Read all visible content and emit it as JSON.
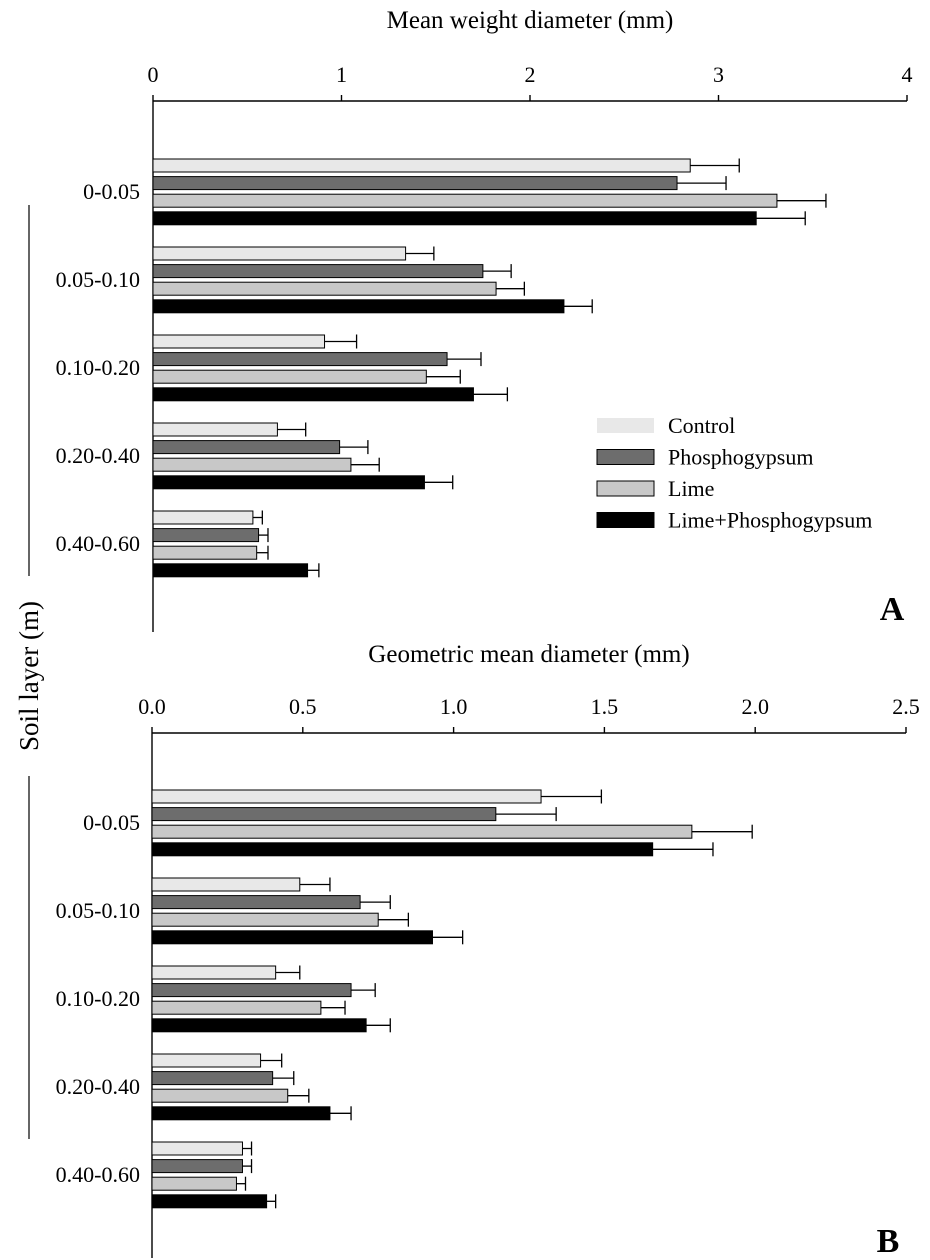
{
  "figure": {
    "ylabel": "Soil layer (m)",
    "legend": {
      "placement": "inside-right-panel-A",
      "entries": [
        {
          "name": "Control",
          "color": "#e8e8e8"
        },
        {
          "name": "Phosphogypsum",
          "color": "#6d6d6d"
        },
        {
          "name": "Lime",
          "color": "#c8c8c8"
        },
        {
          "name": "Lime+Phosphogypsum",
          "color": "#000000"
        }
      ]
    }
  },
  "chart_data": [
    {
      "type": "bar",
      "orientation": "horizontal",
      "panel": "A",
      "title": "Mean weight diameter (mm)",
      "xaxis_position": "top",
      "xlim": [
        0,
        4
      ],
      "xticks": [
        "0",
        "1",
        "2",
        "3",
        "4"
      ],
      "grid": false,
      "categories": [
        "0-0.05",
        "0.05-0.10",
        "0.10-0.20",
        "0.20-0.40",
        "0.40-0.60"
      ],
      "series": [
        {
          "name": "Control",
          "color": "#e8e8e8",
          "values": [
            2.85,
            1.34,
            0.91,
            0.66,
            0.53
          ],
          "errors": [
            0.26,
            0.15,
            0.17,
            0.15,
            0.05
          ]
        },
        {
          "name": "Phosphogypsum",
          "color": "#6d6d6d",
          "values": [
            2.78,
            1.75,
            1.56,
            0.99,
            0.56
          ],
          "errors": [
            0.26,
            0.15,
            0.18,
            0.15,
            0.05
          ]
        },
        {
          "name": "Lime",
          "color": "#c8c8c8",
          "values": [
            3.31,
            1.82,
            1.45,
            1.05,
            0.55
          ],
          "errors": [
            0.26,
            0.15,
            0.18,
            0.15,
            0.06
          ]
        },
        {
          "name": "Lime+Phosphogypsum",
          "color": "#000000",
          "values": [
            3.2,
            2.18,
            1.7,
            1.44,
            0.82
          ],
          "errors": [
            0.26,
            0.15,
            0.18,
            0.15,
            0.06
          ]
        }
      ]
    },
    {
      "type": "bar",
      "orientation": "horizontal",
      "panel": "B",
      "title": "Geometric mean diameter (mm)",
      "xaxis_position": "top",
      "xlim": [
        0,
        2.5
      ],
      "xticks": [
        "0.0",
        "0.5",
        "1.0",
        "1.5",
        "2.0",
        "2.5"
      ],
      "grid": false,
      "categories": [
        "0-0.05",
        "0.05-0.10",
        "0.10-0.20",
        "0.20-0.40",
        "0.40-0.60"
      ],
      "series": [
        {
          "name": "Control",
          "color": "#e8e8e8",
          "values": [
            1.29,
            0.49,
            0.41,
            0.36,
            0.3
          ],
          "errors": [
            0.2,
            0.1,
            0.08,
            0.07,
            0.03
          ]
        },
        {
          "name": "Phosphogypsum",
          "color": "#6d6d6d",
          "values": [
            1.14,
            0.69,
            0.66,
            0.4,
            0.3
          ],
          "errors": [
            0.2,
            0.1,
            0.08,
            0.07,
            0.03
          ]
        },
        {
          "name": "Lime",
          "color": "#c8c8c8",
          "values": [
            1.79,
            0.75,
            0.56,
            0.45,
            0.28
          ],
          "errors": [
            0.2,
            0.1,
            0.08,
            0.07,
            0.03
          ]
        },
        {
          "name": "Lime+Phosphogypsum",
          "color": "#000000",
          "values": [
            1.66,
            0.93,
            0.71,
            0.59,
            0.38
          ],
          "errors": [
            0.2,
            0.1,
            0.08,
            0.07,
            0.03
          ]
        }
      ]
    }
  ]
}
